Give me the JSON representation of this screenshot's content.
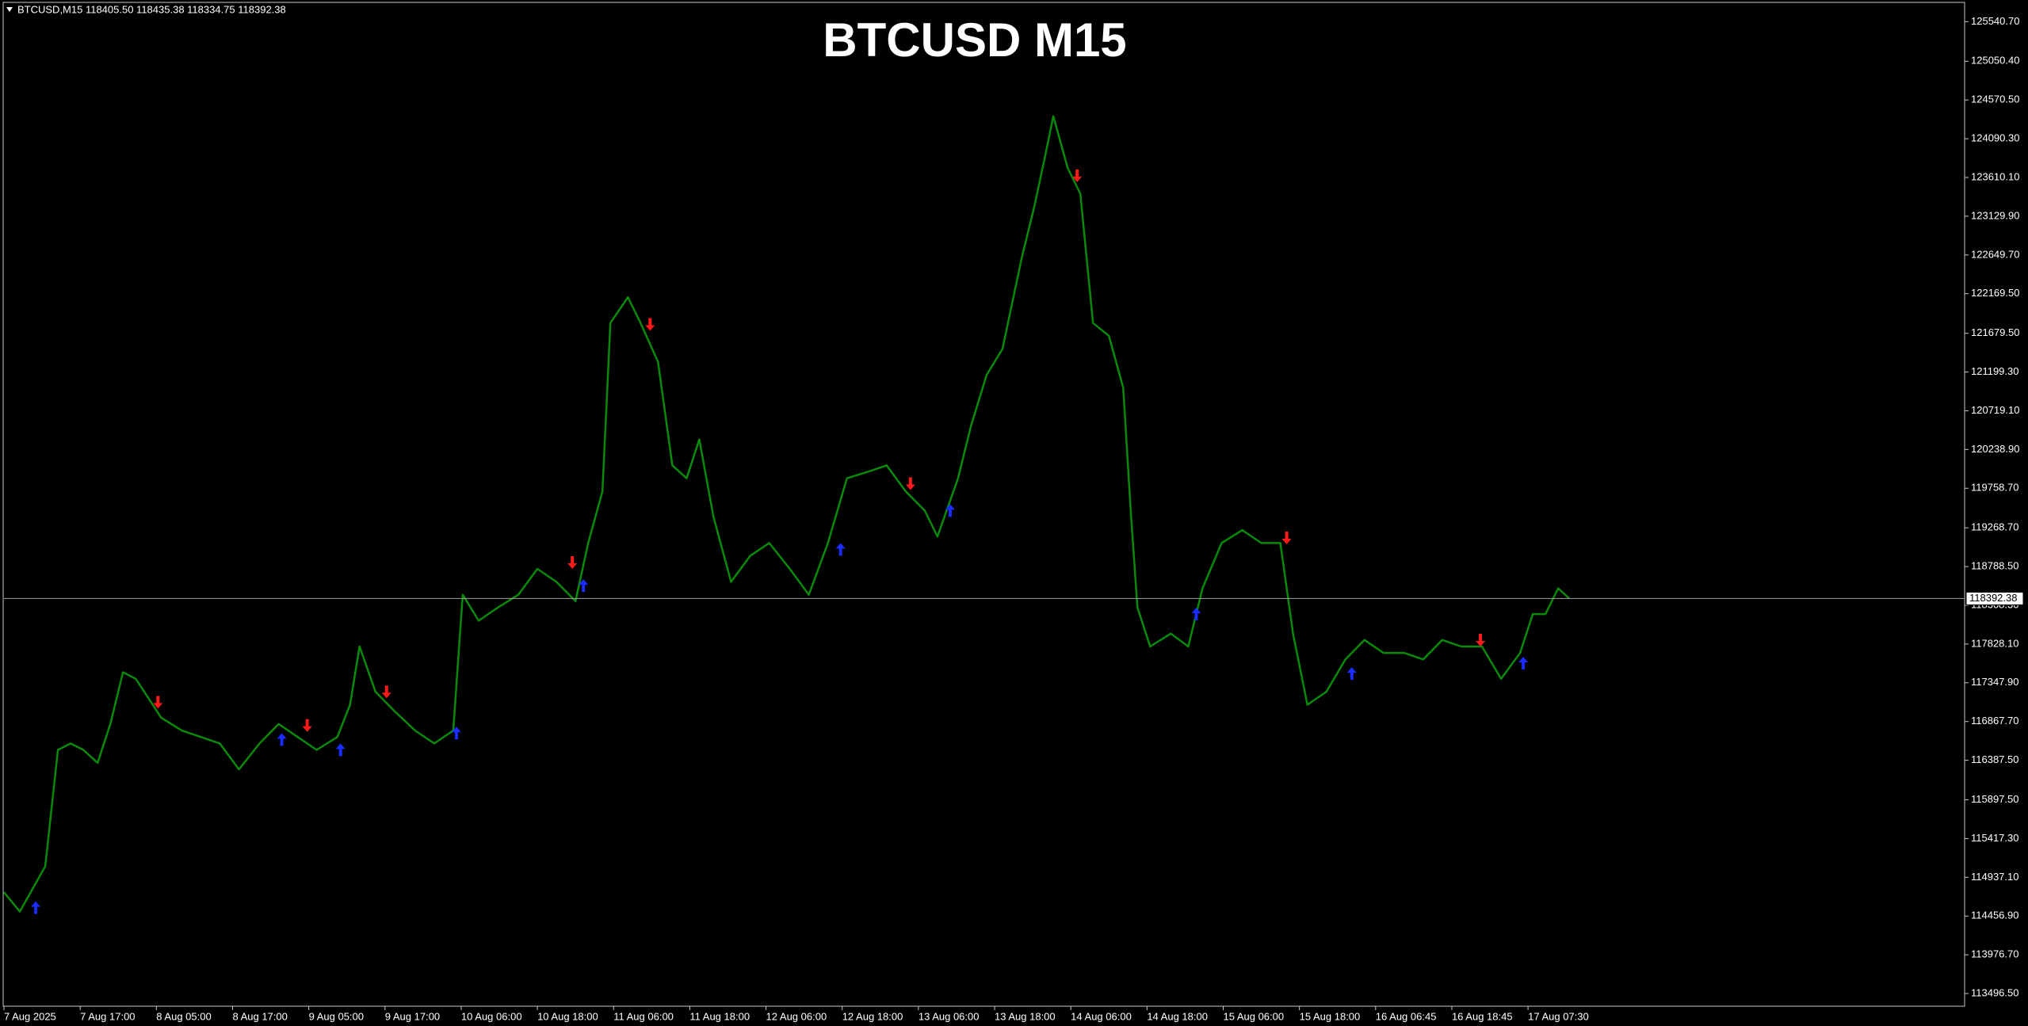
{
  "chart_data": {
    "type": "line",
    "header": "BTCUSD,M15  118405.50 118435.38 118334.75 118392.38",
    "title": "BTCUSD M15",
    "x": [
      0,
      10,
      26,
      34,
      42,
      50,
      59,
      67,
      75,
      83,
      91,
      99,
      112,
      124,
      136,
      148,
      161,
      173,
      185,
      197,
      210,
      218,
      224,
      234,
      246,
      259,
      271,
      283,
      289,
      299,
      311,
      324,
      336,
      348,
      360,
      368,
      377,
      382,
      393,
      401,
      412,
      421,
      430,
      438,
      447,
      458,
      470,
      482,
      495,
      507,
      519,
      531,
      544,
      556,
      568,
      580,
      588,
      601,
      609,
      619,
      629,
      641,
      649,
      656,
      661,
      670,
      678,
      686,
      696,
      705,
      710,
      714,
      722,
      735,
      746,
      755,
      767,
      780,
      792,
      804,
      812,
      821,
      833,
      845,
      857,
      869,
      882,
      894,
      906,
      918,
      931,
      943,
      955,
      963,
      971,
      979,
      986
    ],
    "series": [
      {
        "color": "#0a8a0a",
        "values": [
          114752,
          114512,
          115073,
          116516,
          116596,
          116516,
          116355,
          116836,
          117478,
          117397,
          117157,
          116916,
          116756,
          116676,
          116596,
          116275,
          116596,
          116836,
          116676,
          116516,
          116676,
          117076,
          117798,
          117237,
          116996,
          116756,
          116596,
          116756,
          118439,
          118118,
          118279,
          118439,
          118760,
          118599,
          118359,
          119080,
          119721,
          121806,
          122126,
          121806,
          121325,
          120042,
          119882,
          120363,
          119400,
          118599,
          118920,
          119080,
          118760,
          118439,
          119080,
          119882,
          119962,
          120042,
          119721,
          119481,
          119160,
          119882,
          120523,
          121164,
          121485,
          122607,
          123249,
          123890,
          124370,
          123729,
          123409,
          121806,
          121646,
          121004,
          119400,
          118279,
          117798,
          117958,
          117798,
          118519,
          119080,
          119240,
          119080,
          119080,
          117958,
          117076,
          117237,
          117638,
          117878,
          117718,
          117718,
          117638,
          117878,
          117798,
          117798,
          117397,
          117718,
          118199,
          118199,
          118519,
          118392
        ]
      }
    ],
    "signals": {
      "sell": {
        "color": "#ff1a1a",
        "x": [
          97,
          191,
          241,
          358,
          407,
          571,
          676,
          808,
          930
        ],
        "y": [
          117028,
          116740,
          117157,
          118760,
          121710,
          119737,
          123553,
          119064,
          117798
        ]
      },
      "buy": {
        "color": "#1a2cff",
        "x": [
          20,
          175,
          212,
          285,
          365,
          527,
          596,
          751,
          849,
          957
        ],
        "y": [
          114640,
          116724,
          116596,
          116804,
          118631,
          119080,
          119561,
          118279,
          117541,
          117670
        ]
      }
    },
    "current_price": 118392.38,
    "xlim": [
      0,
      1235
    ],
    "xticks": [
      {
        "value": 0,
        "label": "7 Aug 2025"
      },
      {
        "value": 48,
        "label": "7 Aug 17:00"
      },
      {
        "value": 96,
        "label": "8 Aug 05:00"
      },
      {
        "value": 144,
        "label": "8 Aug 17:00"
      },
      {
        "value": 192,
        "label": "9 Aug 05:00"
      },
      {
        "value": 240,
        "label": "9 Aug 17:00"
      },
      {
        "value": 288,
        "label": "10 Aug 06:00"
      },
      {
        "value": 336,
        "label": "10 Aug 18:00"
      },
      {
        "value": 384,
        "label": "11 Aug 06:00"
      },
      {
        "value": 432,
        "label": "11 Aug 18:00"
      },
      {
        "value": 480,
        "label": "12 Aug 06:00"
      },
      {
        "value": 528,
        "label": "12 Aug 18:00"
      },
      {
        "value": 576,
        "label": "13 Aug 06:00"
      },
      {
        "value": 624,
        "label": "13 Aug 18:00"
      },
      {
        "value": 672,
        "label": "14 Aug 06:00"
      },
      {
        "value": 720,
        "label": "14 Aug 18:00"
      },
      {
        "value": 768,
        "label": "15 Aug 06:00"
      },
      {
        "value": 816,
        "label": "15 Aug 18:00"
      },
      {
        "value": 864,
        "label": "16 Aug 06:45"
      },
      {
        "value": 912,
        "label": "16 Aug 18:45"
      },
      {
        "value": 960,
        "label": "17 Aug 07:30"
      }
    ],
    "ylim": [
      113340,
      125780
    ],
    "yticks": [
      {
        "value": 125540.7,
        "label": "125540.70"
      },
      {
        "value": 125050.4,
        "label": "125050.40"
      },
      {
        "value": 124570.5,
        "label": "124570.50"
      },
      {
        "value": 124090.3,
        "label": "124090.30"
      },
      {
        "value": 123610.1,
        "label": "123610.10"
      },
      {
        "value": 123129.9,
        "label": "123129.90"
      },
      {
        "value": 122649.7,
        "label": "122649.70"
      },
      {
        "value": 122169.5,
        "label": "122169.50"
      },
      {
        "value": 121679.5,
        "label": "121679.50"
      },
      {
        "value": 121199.3,
        "label": "121199.30"
      },
      {
        "value": 120719.1,
        "label": "120719.10"
      },
      {
        "value": 120238.9,
        "label": "120238.90"
      },
      {
        "value": 119758.7,
        "label": "119758.70"
      },
      {
        "value": 119268.7,
        "label": "119268.70"
      },
      {
        "value": 118788.5,
        "label": "118788.50"
      },
      {
        "value": 118308.3,
        "label": "118308.30"
      },
      {
        "value": 117828.1,
        "label": "117828.10"
      },
      {
        "value": 117347.9,
        "label": "117347.90"
      },
      {
        "value": 116867.7,
        "label": "116867.70"
      },
      {
        "value": 116387.5,
        "label": "116387.50"
      },
      {
        "value": 115897.5,
        "label": "115897.50"
      },
      {
        "value": 115417.3,
        "label": "115417.30"
      },
      {
        "value": 114937.1,
        "label": "114937.10"
      },
      {
        "value": 114456.9,
        "label": "114456.90"
      },
      {
        "value": 113976.7,
        "label": "113976.70"
      },
      {
        "value": 113496.5,
        "label": "113496.50"
      }
    ]
  }
}
